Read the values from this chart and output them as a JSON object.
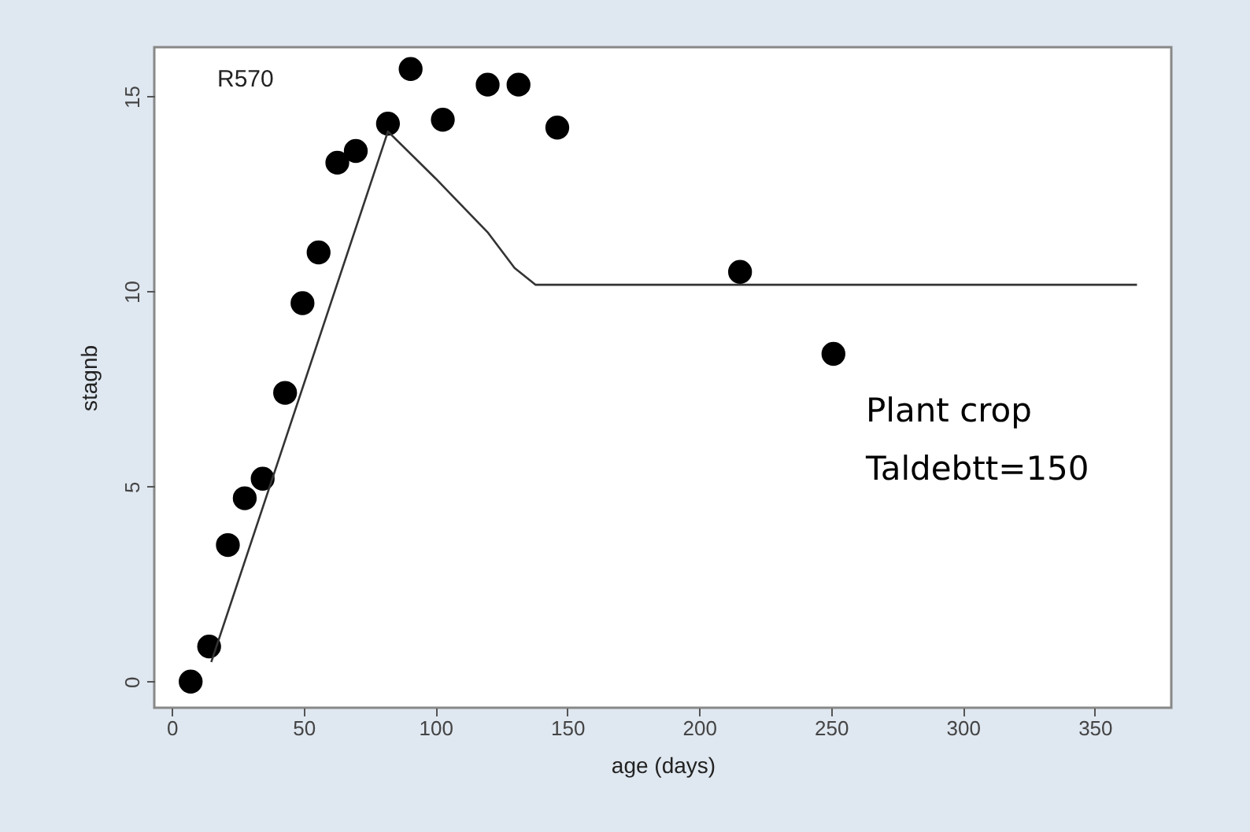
{
  "chart_data": {
    "type": "scatter",
    "xlabel": "age (days)",
    "ylabel": "stagnb",
    "xlim": [
      -6.6,
      379
    ],
    "ylim": [
      -0.67,
      16.26
    ],
    "xticks": [
      0,
      50,
      100,
      150,
      200,
      250,
      300,
      350
    ],
    "yticks": [
      0,
      5,
      10,
      15
    ],
    "grid": false,
    "annotations": [
      "R570",
      "Plant crop",
      "Taldebtt=150"
    ],
    "series": [
      {
        "color": "#000000",
        "marker": "circle",
        "x": [
          7.2,
          14.2,
          21.3,
          27.7,
          34.5,
          43,
          49.6,
          55.7,
          62.8,
          69.8,
          82,
          90.6,
          102.8,
          119.8,
          131.5,
          146.2,
          215.5,
          250.9
        ],
        "values": [
          0,
          0.9,
          3.5,
          4.7,
          5.2,
          7.4,
          9.7,
          11,
          13.3,
          13.6,
          14.3,
          15.7,
          14.4,
          15.3,
          15.3,
          14.2,
          10.5,
          8.4
        ]
      },
      {
        "type": "line",
        "color": "#333333",
        "line_style": "solid",
        "marker": "none",
        "x": [
          15,
          82,
          100,
          120,
          130,
          138,
          366
        ],
        "values": [
          0.5,
          14.1,
          12.9,
          11.5,
          10.6,
          10.17,
          10.17
        ]
      }
    ]
  }
}
